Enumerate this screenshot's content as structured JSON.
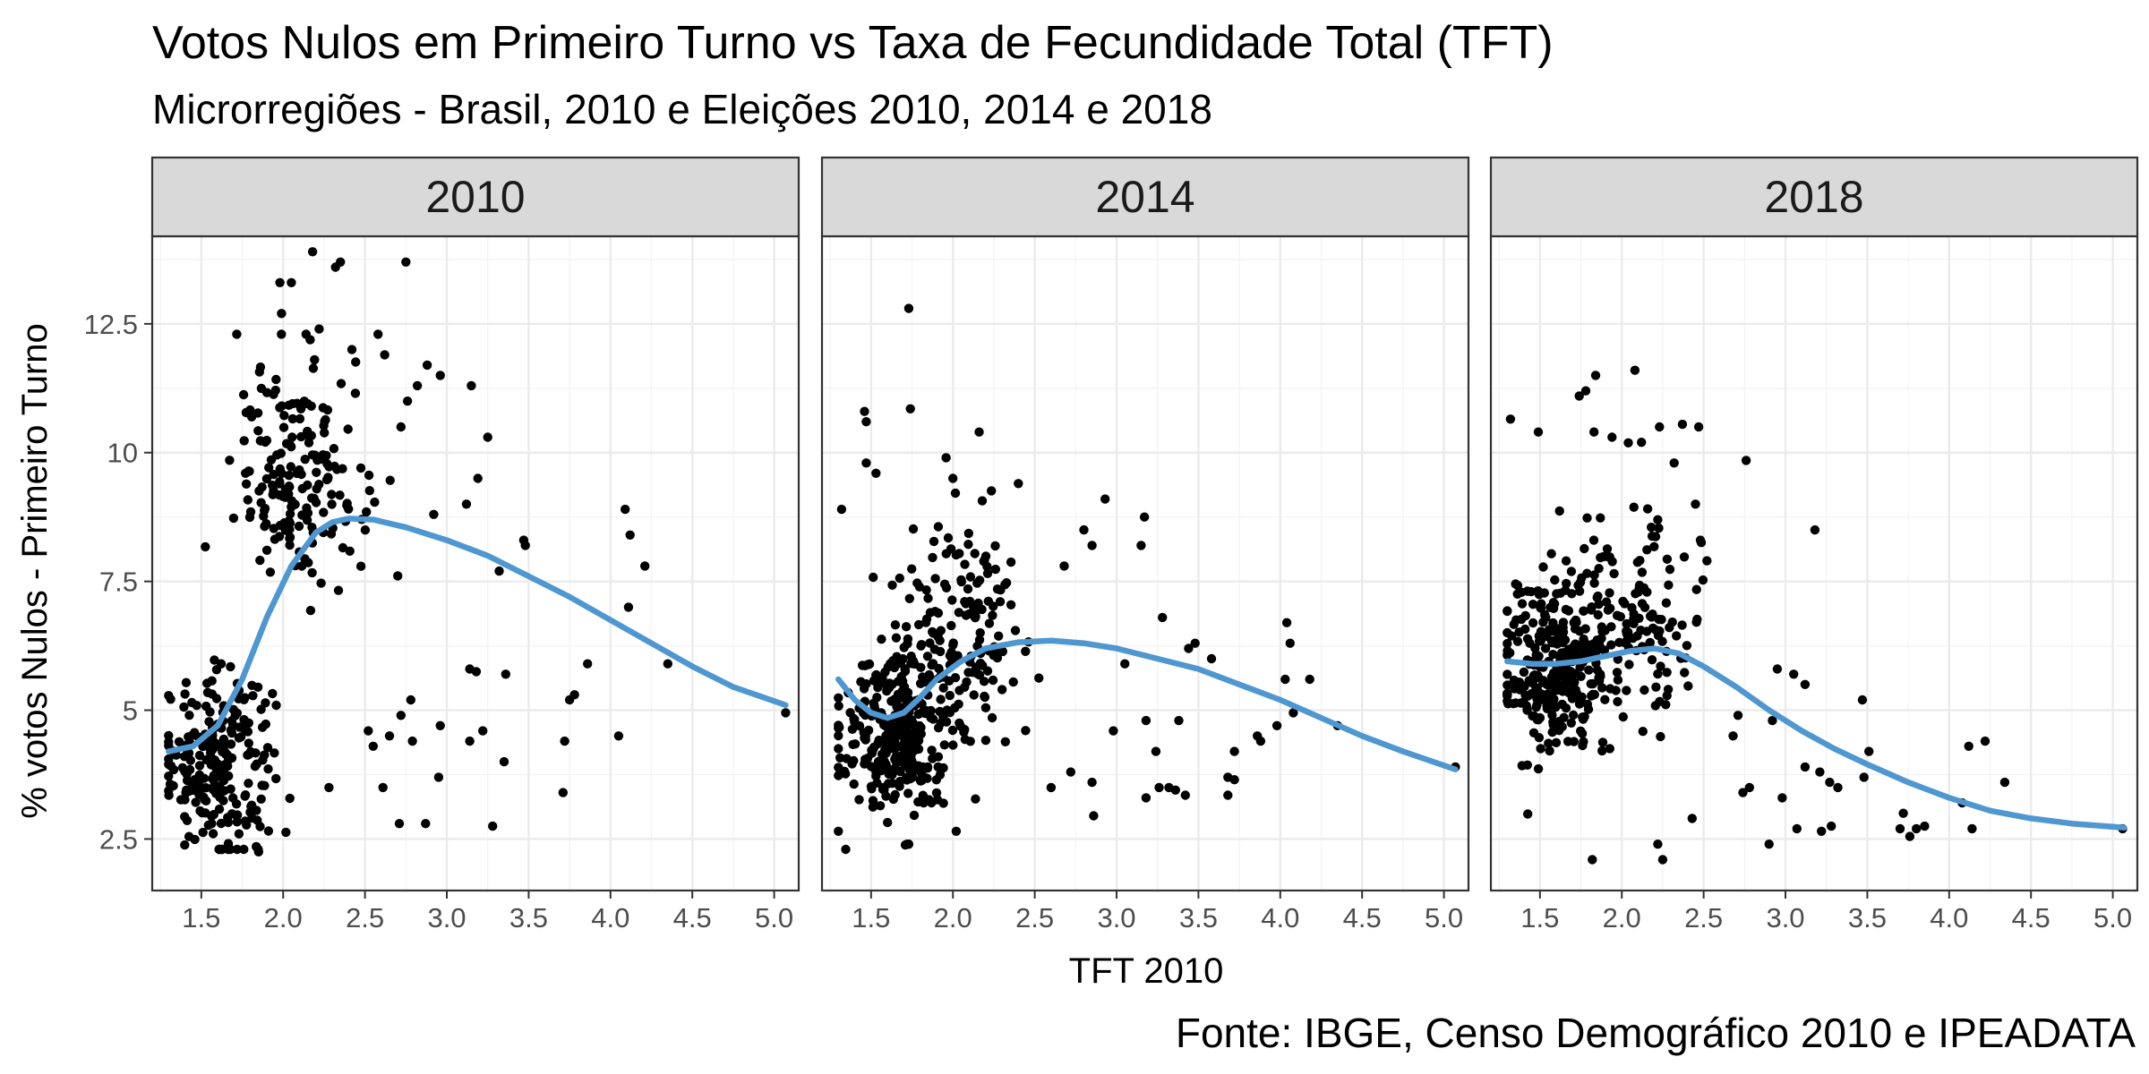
{
  "chart_data": {
    "type": "scatter",
    "title": "Votos Nulos em Primeiro Turno vs Taxa de Fecundidade Total (TFT)",
    "subtitle": "Microrregiões - Brasil, 2010 e Eleições 2010, 2014 e 2018",
    "caption": "Fonte: IBGE, Censo Demográfico 2010 e IPEADATA",
    "xlabel": "TFT 2010",
    "ylabel": "% votos Nulos - Primeiro Turno",
    "xlim": [
      1.2,
      5.15
    ],
    "ylim": [
      1.5,
      14.2
    ],
    "x_ticks": [
      1.5,
      2.0,
      2.5,
      3.0,
      3.5,
      4.0,
      4.5,
      5.0
    ],
    "x_tick_labels": [
      "1.5",
      "2.0",
      "2.5",
      "3.0",
      "3.5",
      "4.0",
      "4.5",
      "5.0"
    ],
    "y_ticks": [
      2.5,
      5,
      7.5,
      10,
      12.5
    ],
    "y_tick_labels": [
      "2.5",
      "5",
      "7.5",
      "10",
      "12.5"
    ],
    "grid": true,
    "colors": {
      "points": "#000000",
      "smooth": "#4f97d1",
      "strip": "#d9d9d9"
    },
    "panels": [
      {
        "label": "2010",
        "cluster_centers": [
          {
            "tft": 1.6,
            "nulos": 4.0,
            "count": 240
          },
          {
            "tft": 2.1,
            "nulos": 9.5,
            "count": 180
          }
        ],
        "points": [
          [
            2.18,
            13.9
          ],
          [
            2.35,
            13.7
          ],
          [
            2.32,
            13.6
          ],
          [
            2.75,
            13.7
          ],
          [
            1.98,
            13.3
          ],
          [
            2.05,
            13.3
          ],
          [
            1.99,
            12.7
          ],
          [
            2.22,
            12.4
          ],
          [
            2.14,
            12.3
          ],
          [
            2.58,
            12.3
          ],
          [
            2.42,
            12.0
          ],
          [
            2.62,
            11.9
          ],
          [
            2.88,
            11.7
          ],
          [
            2.96,
            11.5
          ],
          [
            3.15,
            11.3
          ],
          [
            2.82,
            11.3
          ],
          [
            2.76,
            11.0
          ],
          [
            2.72,
            10.5
          ],
          [
            3.25,
            10.3
          ],
          [
            3.19,
            9.5
          ],
          [
            2.92,
            8.8
          ],
          [
            3.12,
            9.0
          ],
          [
            3.32,
            7.7
          ],
          [
            3.47,
            8.3
          ],
          [
            3.48,
            8.2
          ],
          [
            4.09,
            8.9
          ],
          [
            4.12,
            8.4
          ],
          [
            4.21,
            7.8
          ],
          [
            4.11,
            7.0
          ],
          [
            4.35,
            5.9
          ],
          [
            3.86,
            5.9
          ],
          [
            3.78,
            5.3
          ],
          [
            3.75,
            5.2
          ],
          [
            3.14,
            5.8
          ],
          [
            3.18,
            5.75
          ],
          [
            3.36,
            5.7
          ],
          [
            3.22,
            4.6
          ],
          [
            3.14,
            4.4
          ],
          [
            2.96,
            4.7
          ],
          [
            2.78,
            5.2
          ],
          [
            2.72,
            4.9
          ],
          [
            2.65,
            4.5
          ],
          [
            2.52,
            4.6
          ],
          [
            2.55,
            4.3
          ],
          [
            2.61,
            3.5
          ],
          [
            2.79,
            4.4
          ],
          [
            2.95,
            3.7
          ],
          [
            3.35,
            4.0
          ],
          [
            3.72,
            4.4
          ],
          [
            3.71,
            3.4
          ],
          [
            4.05,
            4.5
          ],
          [
            5.07,
            4.95
          ],
          [
            2.87,
            2.8
          ],
          [
            3.28,
            2.75
          ],
          [
            2.71,
            2.8
          ],
          [
            2.28,
            3.5
          ],
          [
            1.85,
            2.25
          ],
          [
            1.73,
            2.6
          ]
        ],
        "smooth": [
          [
            1.3,
            4.2
          ],
          [
            1.45,
            4.3
          ],
          [
            1.6,
            4.7
          ],
          [
            1.75,
            5.6
          ],
          [
            1.9,
            6.8
          ],
          [
            2.05,
            7.8
          ],
          [
            2.2,
            8.45
          ],
          [
            2.3,
            8.65
          ],
          [
            2.4,
            8.72
          ],
          [
            2.55,
            8.7
          ],
          [
            2.75,
            8.55
          ],
          [
            3.0,
            8.3
          ],
          [
            3.25,
            8.0
          ],
          [
            3.5,
            7.6
          ],
          [
            3.75,
            7.2
          ],
          [
            4.0,
            6.75
          ],
          [
            4.25,
            6.3
          ],
          [
            4.5,
            5.85
          ],
          [
            4.75,
            5.45
          ],
          [
            5.07,
            5.1
          ]
        ]
      },
      {
        "label": "2014",
        "cluster_centers": [
          {
            "tft": 1.65,
            "nulos": 4.6,
            "count": 300
          },
          {
            "tft": 2.05,
            "nulos": 6.6,
            "count": 160
          }
        ],
        "points": [
          [
            1.73,
            12.8
          ],
          [
            1.74,
            10.85
          ],
          [
            1.46,
            10.8
          ],
          [
            1.47,
            10.6
          ],
          [
            1.47,
            9.8
          ],
          [
            1.53,
            9.6
          ],
          [
            2.16,
            10.4
          ],
          [
            1.32,
            8.9
          ],
          [
            2.0,
            9.5
          ],
          [
            2.4,
            9.4
          ],
          [
            2.93,
            9.1
          ],
          [
            3.17,
            8.75
          ],
          [
            3.15,
            8.2
          ],
          [
            2.8,
            8.5
          ],
          [
            2.85,
            8.2
          ],
          [
            2.68,
            7.8
          ],
          [
            3.28,
            6.8
          ],
          [
            3.44,
            6.2
          ],
          [
            3.48,
            6.3
          ],
          [
            3.58,
            6.0
          ],
          [
            4.04,
            6.7
          ],
          [
            4.06,
            6.3
          ],
          [
            4.03,
            5.6
          ],
          [
            4.18,
            5.6
          ],
          [
            4.08,
            4.95
          ],
          [
            3.98,
            4.7
          ],
          [
            3.88,
            4.4
          ],
          [
            3.86,
            4.5
          ],
          [
            3.72,
            4.2
          ],
          [
            3.68,
            3.7
          ],
          [
            3.72,
            3.65
          ],
          [
            3.68,
            3.35
          ],
          [
            3.32,
            3.5
          ],
          [
            3.36,
            3.45
          ],
          [
            3.42,
            3.35
          ],
          [
            3.24,
            4.2
          ],
          [
            3.18,
            3.3
          ],
          [
            3.26,
            3.5
          ],
          [
            3.18,
            4.8
          ],
          [
            3.38,
            4.8
          ],
          [
            2.98,
            4.6
          ],
          [
            2.86,
            2.95
          ],
          [
            2.6,
            3.5
          ],
          [
            2.85,
            3.6
          ],
          [
            2.72,
            3.8
          ],
          [
            4.35,
            4.7
          ],
          [
            5.07,
            3.9
          ],
          [
            1.73,
            2.4
          ],
          [
            1.72,
            2.4
          ],
          [
            2.02,
            2.65
          ],
          [
            3.05,
            5.9
          ]
        ],
        "smooth": [
          [
            1.3,
            5.6
          ],
          [
            1.4,
            5.2
          ],
          [
            1.5,
            4.95
          ],
          [
            1.6,
            4.85
          ],
          [
            1.7,
            4.95
          ],
          [
            1.8,
            5.25
          ],
          [
            1.9,
            5.6
          ],
          [
            2.05,
            5.95
          ],
          [
            2.2,
            6.2
          ],
          [
            2.4,
            6.32
          ],
          [
            2.6,
            6.35
          ],
          [
            2.8,
            6.3
          ],
          [
            3.0,
            6.2
          ],
          [
            3.25,
            6.0
          ],
          [
            3.5,
            5.8
          ],
          [
            3.75,
            5.5
          ],
          [
            4.0,
            5.2
          ],
          [
            4.25,
            4.85
          ],
          [
            4.5,
            4.5
          ],
          [
            4.75,
            4.2
          ],
          [
            5.07,
            3.85
          ]
        ]
      },
      {
        "label": "2018",
        "cluster_centers": [
          {
            "tft": 1.6,
            "nulos": 5.8,
            "count": 300
          },
          {
            "tft": 2.05,
            "nulos": 6.8,
            "count": 140
          }
        ],
        "points": [
          [
            2.08,
            11.6
          ],
          [
            1.84,
            11.5
          ],
          [
            1.78,
            11.2
          ],
          [
            1.74,
            11.1
          ],
          [
            1.32,
            10.65
          ],
          [
            1.49,
            10.4
          ],
          [
            1.83,
            10.4
          ],
          [
            1.94,
            10.3
          ],
          [
            2.23,
            10.5
          ],
          [
            2.37,
            10.55
          ],
          [
            2.47,
            10.5
          ],
          [
            2.12,
            10.2
          ],
          [
            2.32,
            9.8
          ],
          [
            2.76,
            9.85
          ],
          [
            2.45,
            9.0
          ],
          [
            2.48,
            8.3
          ],
          [
            2.52,
            7.9
          ],
          [
            3.18,
            8.5
          ],
          [
            2.95,
            5.8
          ],
          [
            3.05,
            5.7
          ],
          [
            3.12,
            5.5
          ],
          [
            3.47,
            5.2
          ],
          [
            2.92,
            4.8
          ],
          [
            2.71,
            4.9
          ],
          [
            2.68,
            4.5
          ],
          [
            2.78,
            3.5
          ],
          [
            2.74,
            3.4
          ],
          [
            2.98,
            3.3
          ],
          [
            3.21,
            3.8
          ],
          [
            3.27,
            3.6
          ],
          [
            3.32,
            3.5
          ],
          [
            3.48,
            3.7
          ],
          [
            3.12,
            3.9
          ],
          [
            3.07,
            2.7
          ],
          [
            3.22,
            2.65
          ],
          [
            3.28,
            2.75
          ],
          [
            2.9,
            2.4
          ],
          [
            2.43,
            2.9
          ],
          [
            2.25,
            2.1
          ],
          [
            2.22,
            2.4
          ],
          [
            1.82,
            2.1
          ],
          [
            3.72,
            3.0
          ],
          [
            3.7,
            2.7
          ],
          [
            3.76,
            2.55
          ],
          [
            3.8,
            2.7
          ],
          [
            3.85,
            2.75
          ],
          [
            4.08,
            3.2
          ],
          [
            4.12,
            4.3
          ],
          [
            4.22,
            4.4
          ],
          [
            4.34,
            3.6
          ],
          [
            4.14,
            2.7
          ],
          [
            5.06,
            2.7
          ],
          [
            3.51,
            4.2
          ]
        ],
        "smooth": [
          [
            1.3,
            5.95
          ],
          [
            1.45,
            5.9
          ],
          [
            1.6,
            5.9
          ],
          [
            1.75,
            5.95
          ],
          [
            1.9,
            6.05
          ],
          [
            2.05,
            6.15
          ],
          [
            2.2,
            6.2
          ],
          [
            2.35,
            6.1
          ],
          [
            2.5,
            5.85
          ],
          [
            2.7,
            5.45
          ],
          [
            2.9,
            5.0
          ],
          [
            3.1,
            4.6
          ],
          [
            3.3,
            4.25
          ],
          [
            3.5,
            3.95
          ],
          [
            3.75,
            3.6
          ],
          [
            4.0,
            3.3
          ],
          [
            4.25,
            3.05
          ],
          [
            4.5,
            2.9
          ],
          [
            4.75,
            2.8
          ],
          [
            5.07,
            2.72
          ]
        ]
      }
    ]
  }
}
